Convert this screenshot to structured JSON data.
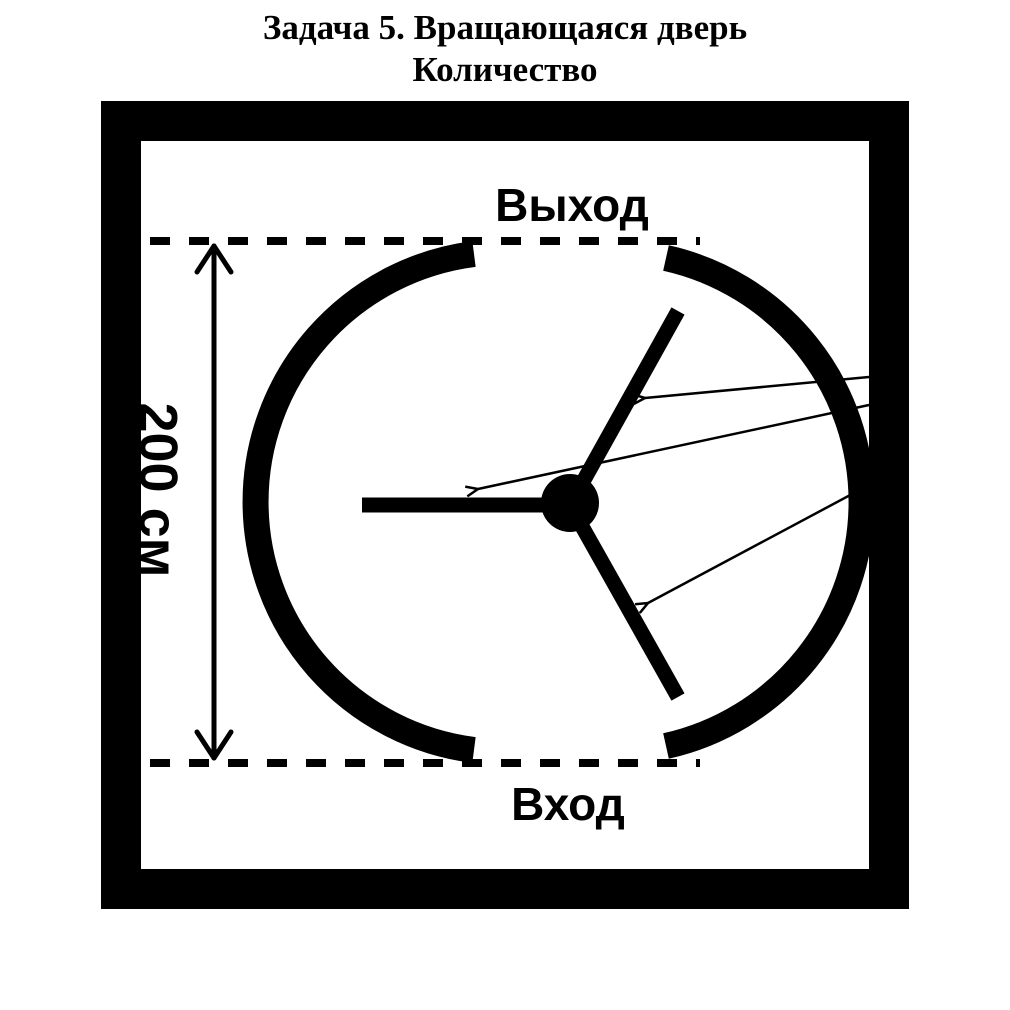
{
  "title": {
    "line1": "Задача 5. Вращающаяся дверь",
    "line2": "Количество"
  },
  "labels": {
    "exit": "Выход",
    "entrance": "Вход",
    "dimension": "200 см"
  }
}
